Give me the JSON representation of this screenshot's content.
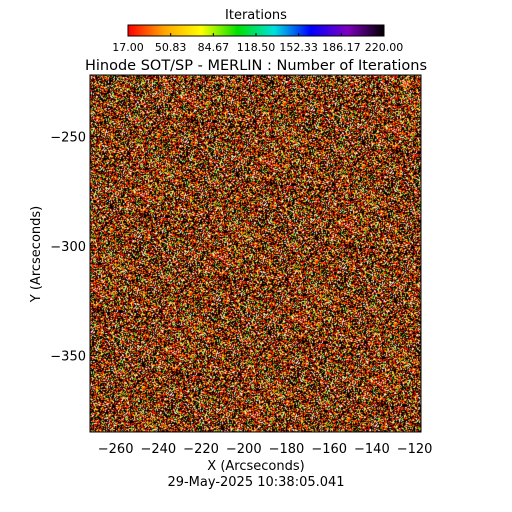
{
  "chart_data": {
    "type": "heatmap",
    "title": "Hinode SOT/SP - MERLIN : Number of Iterations",
    "colorbar": {
      "title": "Iterations",
      "ticks": [
        "17.00",
        "50.83",
        "84.67",
        "118.50",
        "152.33",
        "186.17",
        "220.00"
      ],
      "range": [
        17.0,
        220.0
      ],
      "colormap": [
        "#ff0000",
        "#ffa500",
        "#ffff00",
        "#00e000",
        "#00e0e0",
        "#0000ff",
        "#8000c0",
        "#000000"
      ]
    },
    "xlabel": "X (Arcseconds)",
    "ylabel": "Y (Arcseconds)",
    "xlim": [
      -272,
      -117
    ],
    "ylim": [
      -385,
      -222
    ],
    "xticks": [
      -260,
      -240,
      -220,
      -200,
      -180,
      -160,
      -140,
      -120
    ],
    "yticks": [
      -250,
      -300,
      -350
    ],
    "grid": false,
    "value_distribution": {
      "typical_values": [
        17,
        30,
        45,
        60
      ],
      "dominant_colors": [
        "#000000",
        "#ff2a00",
        "#ffd000",
        "#40c020",
        "#ffffff"
      ]
    },
    "timestamp": "29-May-2025 10:38:05.041"
  }
}
